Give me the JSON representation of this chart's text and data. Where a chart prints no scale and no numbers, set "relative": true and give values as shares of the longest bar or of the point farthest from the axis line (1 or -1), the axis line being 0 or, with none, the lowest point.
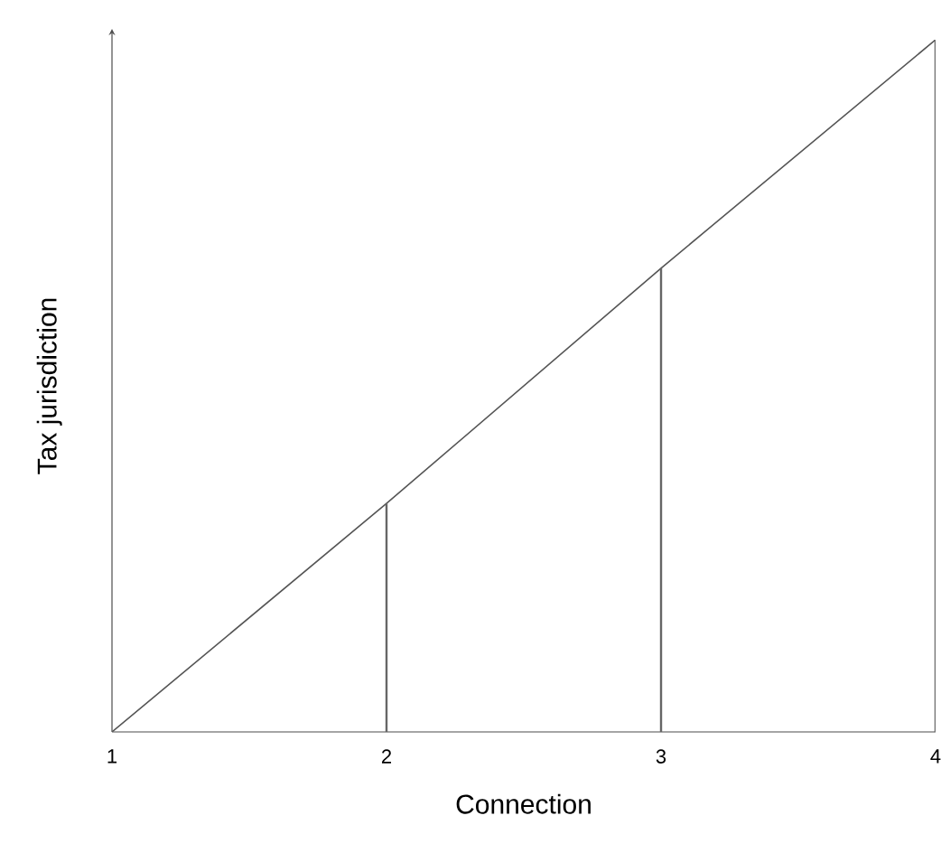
{
  "chart_data": {
    "type": "line",
    "relative": true,
    "xlabel": "Connection",
    "ylabel": "Tax jurisdiction",
    "x": [
      1,
      2,
      3,
      4
    ],
    "xlim": [
      1,
      4
    ],
    "xticks": [
      1,
      2,
      3,
      4
    ],
    "marker": "none",
    "series": [
      {
        "color": "#555555",
        "values": [
          0,
          0.33,
          0.67,
          1
        ]
      },
      {
        "type": "bar",
        "color": "#666666",
        "values": [
          null,
          0.33,
          0.67,
          1
        ]
      }
    ]
  }
}
